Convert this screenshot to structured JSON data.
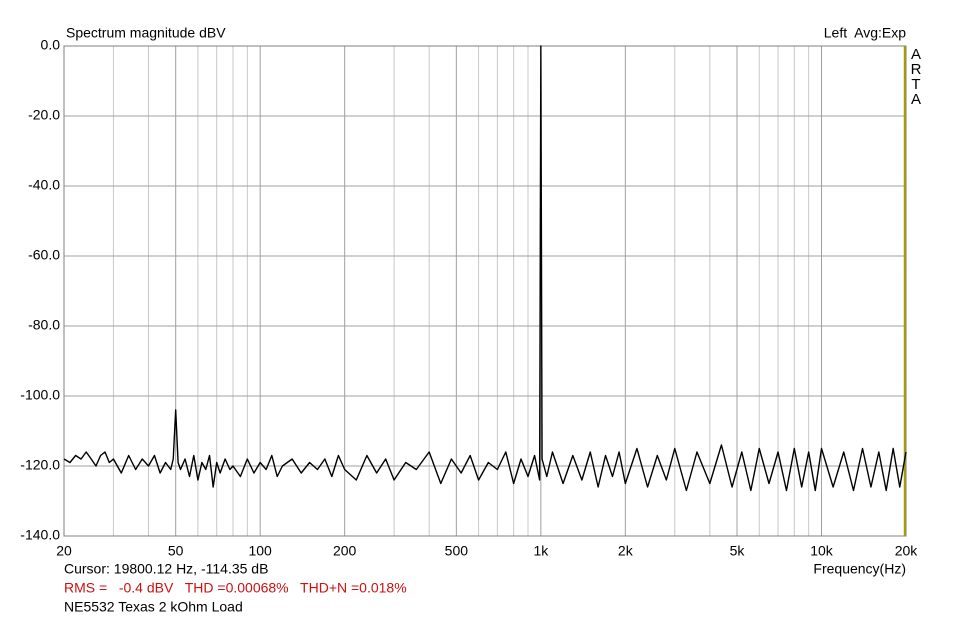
{
  "chart_data": {
    "type": "line",
    "title": "Spectrum magnitude dBV",
    "top_right_label": "Left  Avg:Exp",
    "side_label": "ARTA",
    "xlabel": "Frequency(Hz)",
    "log_x": true,
    "grid": true,
    "xlim": [
      20,
      20000
    ],
    "ylim": [
      -140,
      0
    ],
    "yticks": [
      {
        "value": 0,
        "label": "0.0"
      },
      {
        "value": -20,
        "label": "-20.0"
      },
      {
        "value": -40,
        "label": "-40.0"
      },
      {
        "value": -60,
        "label": "-60.0"
      },
      {
        "value": -80,
        "label": "-80.0"
      },
      {
        "value": -100,
        "label": "-100.0"
      },
      {
        "value": -120,
        "label": "-120.0"
      },
      {
        "value": -140,
        "label": "-140.0"
      }
    ],
    "xticks": [
      20,
      50,
      100,
      200,
      500,
      {
        "value": 1000,
        "label": "1k"
      },
      {
        "value": 2000,
        "label": "2k"
      },
      {
        "value": 5000,
        "label": "5k"
      },
      {
        "value": 10000,
        "label": "10k"
      },
      {
        "value": 20000,
        "label": "20k"
      }
    ],
    "xgrid_minor": [
      30,
      40,
      60,
      70,
      80,
      90,
      300,
      400,
      600,
      700,
      800,
      900,
      3000,
      4000,
      6000,
      7000,
      8000,
      9000
    ],
    "cursor": {
      "x": 19800.12,
      "color": "#a89c00"
    },
    "footer": {
      "cursor_text": "Cursor: 19800.12 Hz, -114.35 dB",
      "measurements": "RMS =   -0.4 dBV   THD =0.00068%   THD+N =0.018%",
      "measurements_color": "#cc1111",
      "description": "NE5532 Texas 2 kOhm Load"
    },
    "series": [
      {
        "name": "Spectrum",
        "color": "#000000",
        "x": [
          20,
          21,
          22,
          23,
          24,
          25,
          26,
          27,
          28,
          29,
          30,
          32,
          34,
          36,
          38,
          40,
          42,
          44,
          46,
          48,
          49,
          50,
          51,
          52,
          54,
          56,
          58,
          60,
          62,
          64,
          66,
          68,
          70,
          72,
          75,
          78,
          80,
          85,
          90,
          95,
          100,
          105,
          110,
          115,
          120,
          130,
          140,
          150,
          160,
          170,
          180,
          190,
          200,
          220,
          240,
          260,
          280,
          300,
          330,
          360,
          400,
          440,
          480,
          520,
          560,
          600,
          650,
          700,
          750,
          800,
          850,
          900,
          950,
          990,
          1000,
          1010,
          1050,
          1100,
          1200,
          1300,
          1400,
          1500,
          1600,
          1700,
          1800,
          1900,
          2000,
          2200,
          2400,
          2600,
          2800,
          3000,
          3300,
          3600,
          4000,
          4400,
          4800,
          5200,
          5600,
          6000,
          6500,
          7000,
          7500,
          8000,
          8500,
          9000,
          9500,
          10000,
          11000,
          12000,
          13000,
          14000,
          15000,
          16000,
          17000,
          18000,
          19000,
          20000
        ],
        "values": [
          -118,
          -119,
          -117,
          -118,
          -116,
          -118,
          -120,
          -117,
          -116,
          -119,
          -118,
          -122,
          -117,
          -121,
          -118,
          -120,
          -117,
          -122,
          -119,
          -121,
          -118,
          -104,
          -119,
          -121,
          -118,
          -123,
          -117,
          -124,
          -119,
          -121,
          -117,
          -126,
          -119,
          -122,
          -118,
          -121,
          -120,
          -123,
          -118,
          -122,
          -119,
          -121,
          -117,
          -123,
          -120,
          -118,
          -122,
          -119,
          -121,
          -118,
          -123,
          -117,
          -121,
          -124,
          -117,
          -122,
          -118,
          -124,
          -119,
          -121,
          -116,
          -125,
          -118,
          -122,
          -117,
          -124,
          -119,
          -121,
          -116,
          -125,
          -118,
          -123,
          -117,
          -124,
          0,
          -118,
          -123,
          -116,
          -125,
          -117,
          -124,
          -116,
          -126,
          -117,
          -123,
          -116,
          -125,
          -115,
          -126,
          -117,
          -124,
          -115,
          -127,
          -116,
          -125,
          -114,
          -126,
          -116,
          -127,
          -115,
          -125,
          -116,
          -127,
          -115,
          -126,
          -116,
          -127,
          -115,
          -126,
          -116,
          -127,
          -115,
          -126,
          -116,
          -127,
          -115,
          -126,
          -116
        ]
      }
    ]
  }
}
